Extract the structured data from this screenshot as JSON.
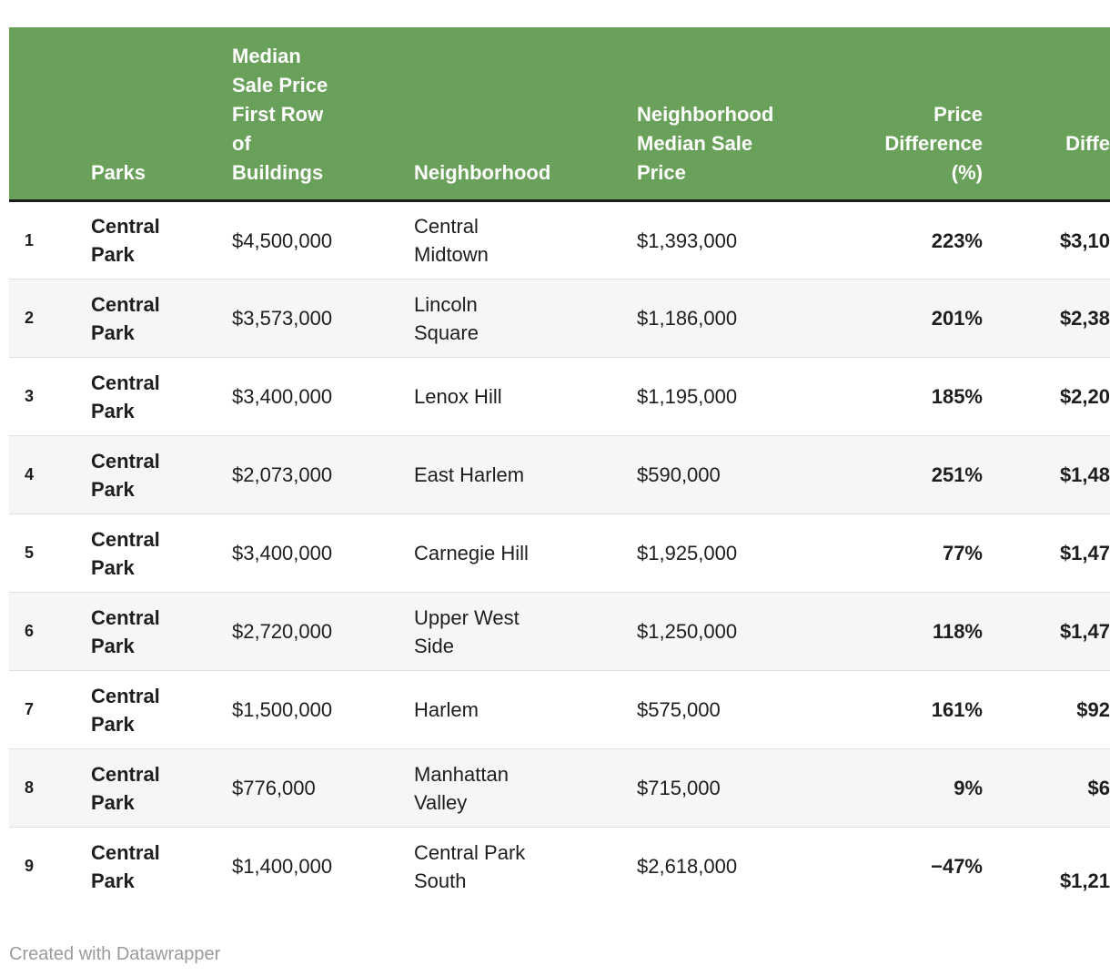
{
  "colors": {
    "header_bg": "#69a05a",
    "header_text": "#ffffff",
    "header_border": "#1c1c1c",
    "zebra_row": "#f6f6f6",
    "row_divider": "#e0e0e0",
    "body_text": "#1e1e1e",
    "credit_text": "#9b9b9b"
  },
  "table": {
    "columns": [
      {
        "label": ""
      },
      {
        "label": "Parks"
      },
      {
        "label": "Median\nSale Price\nFirst Row\nof\nBuildings"
      },
      {
        "label": "Neighborhood"
      },
      {
        "label": "Neighborhood\nMedian Sale\nPrice"
      },
      {
        "label": "Price\nDifference\n(%)"
      },
      {
        "label": "Diffe\n "
      }
    ],
    "rows": [
      {
        "num": "1",
        "park": "Central\nPark",
        "median_first_row": "$4,500,000",
        "neighborhood": "Central\nMidtown",
        "neighborhood_median": "$1,393,000",
        "price_diff_pct": "223%",
        "price_diff_usd": "$3,10"
      },
      {
        "num": "2",
        "park": "Central\nPark",
        "median_first_row": "$3,573,000",
        "neighborhood": "Lincoln\nSquare",
        "neighborhood_median": "$1,186,000",
        "price_diff_pct": "201%",
        "price_diff_usd": "$2,38"
      },
      {
        "num": "3",
        "park": "Central\nPark",
        "median_first_row": "$3,400,000",
        "neighborhood": "Lenox Hill",
        "neighborhood_median": "$1,195,000",
        "price_diff_pct": "185%",
        "price_diff_usd": "$2,20"
      },
      {
        "num": "4",
        "park": "Central\nPark",
        "median_first_row": "$2,073,000",
        "neighborhood": "East Harlem",
        "neighborhood_median": "$590,000",
        "price_diff_pct": "251%",
        "price_diff_usd": "$1,48"
      },
      {
        "num": "5",
        "park": "Central\nPark",
        "median_first_row": "$3,400,000",
        "neighborhood": "Carnegie Hill",
        "neighborhood_median": "$1,925,000",
        "price_diff_pct": "77%",
        "price_diff_usd": "$1,47"
      },
      {
        "num": "6",
        "park": "Central\nPark",
        "median_first_row": "$2,720,000",
        "neighborhood": "Upper West\nSide",
        "neighborhood_median": "$1,250,000",
        "price_diff_pct": "118%",
        "price_diff_usd": "$1,47"
      },
      {
        "num": "7",
        "park": "Central\nPark",
        "median_first_row": "$1,500,000",
        "neighborhood": "Harlem",
        "neighborhood_median": "$575,000",
        "price_diff_pct": "161%",
        "price_diff_usd": "$92"
      },
      {
        "num": "8",
        "park": "Central\nPark",
        "median_first_row": "$776,000",
        "neighborhood": "Manhattan\nValley",
        "neighborhood_median": "$715,000",
        "price_diff_pct": "9%",
        "price_diff_usd": "$6"
      },
      {
        "num": "9",
        "park": "Central\nPark",
        "median_first_row": "$1,400,000",
        "neighborhood": "Central Park\nSouth",
        "neighborhood_median": "$2,618,000",
        "price_diff_pct": "−47%",
        "price_diff_usd": " \n$1,21"
      }
    ]
  },
  "footer": {
    "credit": "Created with Datawrapper"
  },
  "chart_data": {
    "type": "table",
    "columns": [
      "",
      "Parks",
      "Median Sale Price First Row of Buildings",
      "Neighborhood",
      "Neighborhood Median Sale Price",
      "Price Difference (%)",
      "Diffe"
    ],
    "rows": [
      [
        "1",
        "Central Park",
        "$4,500,000",
        "Central Midtown",
        "$1,393,000",
        "223%",
        "$3,10"
      ],
      [
        "2",
        "Central Park",
        "$3,573,000",
        "Lincoln Square",
        "$1,186,000",
        "201%",
        "$2,38"
      ],
      [
        "3",
        "Central Park",
        "$3,400,000",
        "Lenox Hill",
        "$1,195,000",
        "185%",
        "$2,20"
      ],
      [
        "4",
        "Central Park",
        "$2,073,000",
        "East Harlem",
        "$590,000",
        "251%",
        "$1,48"
      ],
      [
        "5",
        "Central Park",
        "$3,400,000",
        "Carnegie Hill",
        "$1,925,000",
        "77%",
        "$1,47"
      ],
      [
        "6",
        "Central Park",
        "$2,720,000",
        "Upper West Side",
        "$1,250,000",
        "118%",
        "$1,47"
      ],
      [
        "7",
        "Central Park",
        "$1,500,000",
        "Harlem",
        "$575,000",
        "161%",
        "$92"
      ],
      [
        "8",
        "Central Park",
        "$776,000",
        "Manhattan Valley",
        "$715,000",
        "9%",
        "$6"
      ],
      [
        "9",
        "Central Park",
        "$1,400,000",
        "Central Park South",
        "$2,618,000",
        "−47%",
        "$1,21"
      ]
    ],
    "notes": "Right-most column is clipped by the viewport edge; only partial header and values are visible."
  }
}
